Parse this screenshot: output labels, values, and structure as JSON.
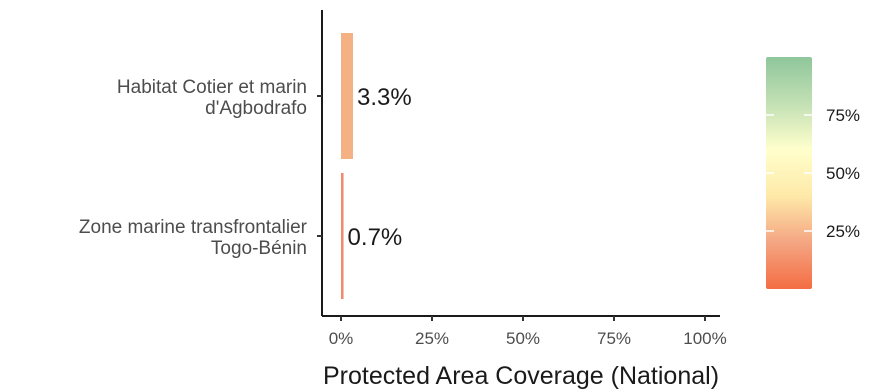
{
  "chart_data": {
    "type": "bar",
    "orientation": "horizontal",
    "categories": [
      [
        "Habitat Cotier et marin",
        "d'Agbodrafo"
      ],
      [
        "Zone marine transfrontalier",
        "Togo-Bénin"
      ]
    ],
    "values": [
      3.3,
      0.7
    ],
    "data_labels": [
      "3.3%",
      "0.7%"
    ],
    "bar_colors": [
      "#F4B183",
      "#F08A6C"
    ],
    "xlabel": "Protected Area Coverage (National)",
    "ylabel": "",
    "xlim": [
      0,
      100
    ],
    "x_ticks": [
      0,
      25,
      50,
      75,
      100
    ],
    "x_tick_labels": [
      "0%",
      "25%",
      "50%",
      "75%",
      "100%"
    ],
    "grid": false,
    "legend": {
      "placement": "right",
      "type": "colorbar",
      "range": [
        0,
        100
      ],
      "ticks": [
        25,
        50,
        75
      ],
      "tick_labels": [
        "25%",
        "50%",
        "75%"
      ],
      "colors": [
        "#F46D43",
        "#F4A582",
        "#FEE9A8",
        "#FFFFCC",
        "#C2E0B4",
        "#8FC69B"
      ]
    }
  }
}
